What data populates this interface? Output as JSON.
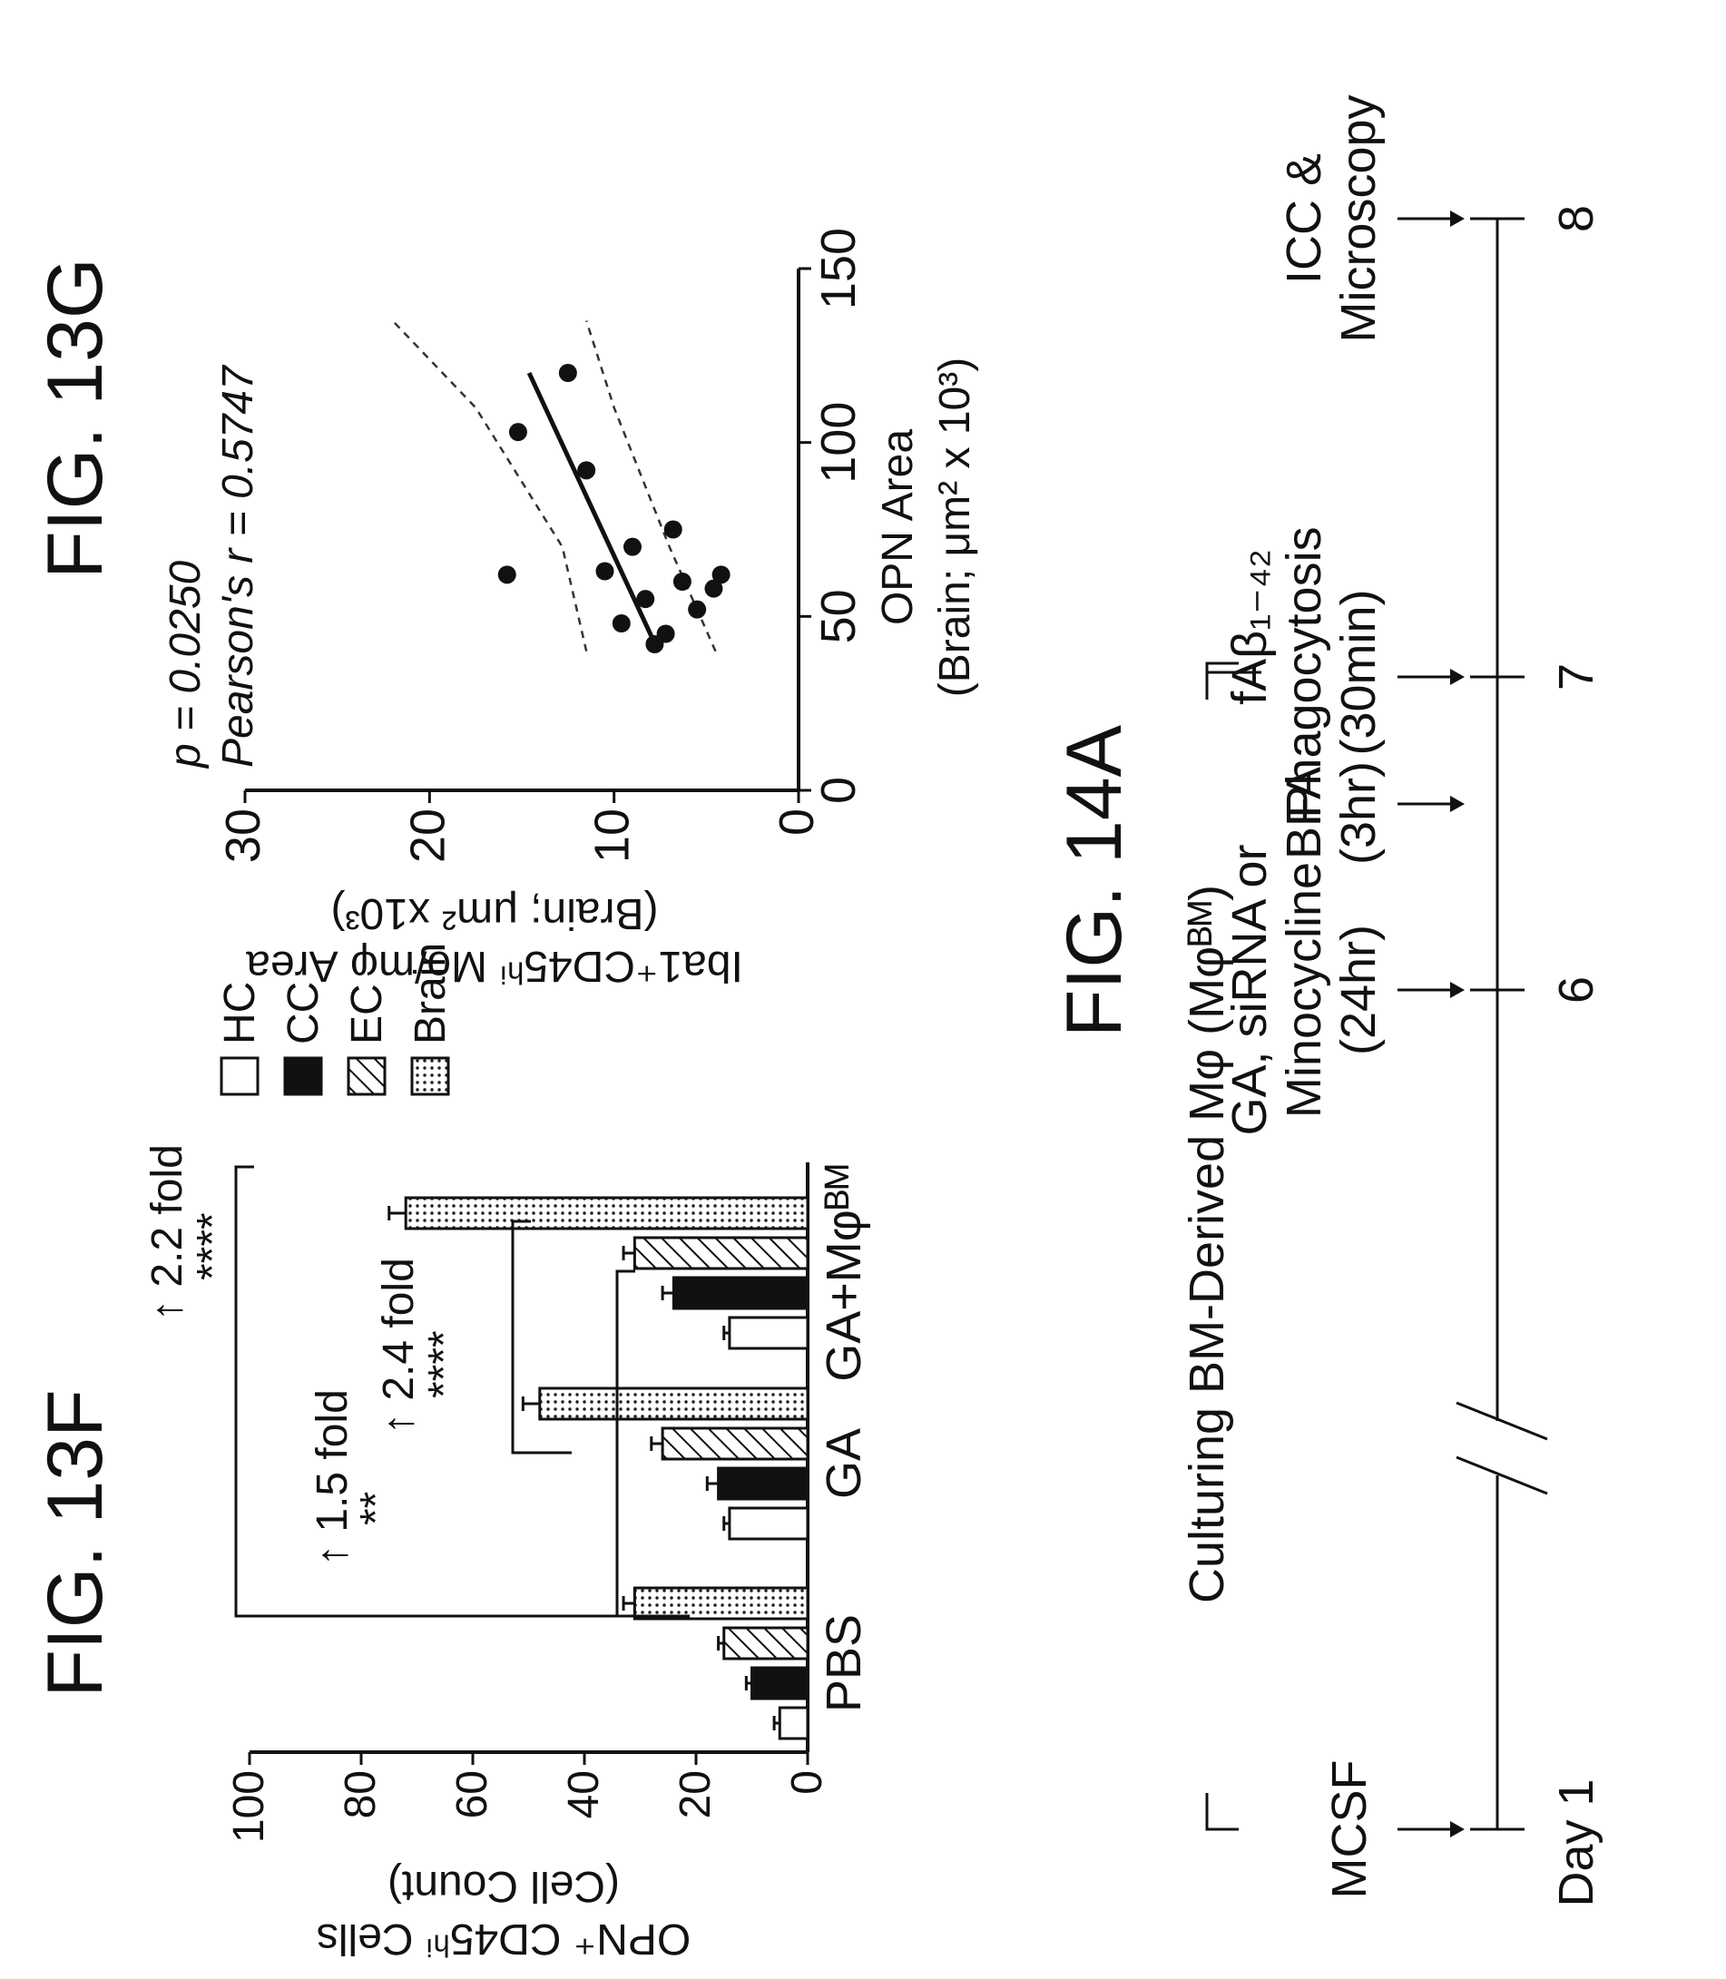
{
  "figures": {
    "fig13f": "FIG. 13F",
    "fig13g": "FIG. 13G",
    "fig14a": "FIG. 14A"
  },
  "chart_data": [
    {
      "type": "bar",
      "figure": "FIG. 13F",
      "ylabel_line1": "OPN⁺ CD45ʰⁱ Cells",
      "ylabel_line2": "(Cell Count)",
      "ylim": [
        0,
        100
      ],
      "yticks": [
        0,
        20,
        40,
        60,
        80,
        100
      ],
      "categories": [
        "PBS",
        "GA",
        "GA+Mφᴮᴹ"
      ],
      "series": [
        {
          "name": "HC",
          "fill": "white",
          "values": [
            5,
            14,
            14
          ]
        },
        {
          "name": "CC",
          "fill": "black",
          "values": [
            10,
            16,
            24
          ]
        },
        {
          "name": "EC",
          "fill": "hatch",
          "values": [
            15,
            26,
            31
          ]
        },
        {
          "name": "Brain",
          "fill": "dotted",
          "values": [
            31,
            48,
            72
          ]
        }
      ],
      "error_bars": {
        "Brain": [
          2,
          3,
          3
        ],
        "CC": [
          1,
          2,
          2
        ],
        "EC": [
          1,
          2,
          2
        ],
        "HC": [
          1,
          1,
          1
        ]
      },
      "annotations": [
        {
          "text": "1.5 fold",
          "stars": "**"
        },
        {
          "text": "2.4 fold",
          "stars": "****"
        },
        {
          "text": "2.2 fold",
          "stars": "****"
        }
      ]
    },
    {
      "type": "scatter",
      "figure": "FIG. 13G",
      "ylabel_line1": "Iba1⁺CD45ʰⁱ Mo/mφ Area",
      "ylabel_line2": "(Brain; μm² x10³)",
      "xlabel_line1": "OPN Area",
      "xlabel_line2": "(Brain; μm² x 10³)",
      "xlim": [
        0,
        150
      ],
      "ylim": [
        0,
        30
      ],
      "xticks": [
        0,
        50,
        100,
        150
      ],
      "yticks": [
        0,
        10,
        20,
        30
      ],
      "stat_p": "p = 0.0250",
      "stat_r": "Pearson's r = 0.5747",
      "points": [
        {
          "x": 42,
          "y": 7.8
        },
        {
          "x": 45,
          "y": 7.2
        },
        {
          "x": 48,
          "y": 9.6
        },
        {
          "x": 52,
          "y": 5.5
        },
        {
          "x": 55,
          "y": 8.3
        },
        {
          "x": 58,
          "y": 4.6
        },
        {
          "x": 62,
          "y": 4.2
        },
        {
          "x": 60,
          "y": 6.3
        },
        {
          "x": 63,
          "y": 10.5
        },
        {
          "x": 70,
          "y": 9.0
        },
        {
          "x": 75,
          "y": 6.8
        },
        {
          "x": 62,
          "y": 15.8
        },
        {
          "x": 92,
          "y": 11.5
        },
        {
          "x": 103,
          "y": 15.2
        },
        {
          "x": 120,
          "y": 12.5
        }
      ],
      "fit": {
        "x": [
          40,
          120
        ],
        "y": [
          7.6,
          14.6
        ]
      },
      "ci_upper": {
        "x": [
          40,
          70,
          110,
          135
        ],
        "y": [
          11.5,
          12.8,
          17.5,
          22.0
        ]
      },
      "ci_lower": {
        "x": [
          40,
          70,
          110,
          135
        ],
        "y": [
          4.5,
          7.0,
          10.0,
          11.5
        ]
      }
    }
  ],
  "timeline": {
    "bracket_culture": "Culturing BM-Derived Mφ (Mφᴮᴹ)",
    "bracket_phago": "fAβ₁₋₄₂",
    "events": [
      {
        "line1": "MCSF",
        "line2": "",
        "line3": ""
      },
      {
        "line1": "GA, siRNA or",
        "line2": "Minocycline",
        "line3": "(24hr)"
      },
      {
        "line1": "BFA",
        "line2": "(3hr)",
        "line3": ""
      },
      {
        "line1": "Phagocytosis",
        "line2": "(30min)",
        "line3": ""
      },
      {
        "line1": "ICC &",
        "line2": "Microscopy",
        "line3": ""
      }
    ],
    "day_labels": [
      "Day 1",
      "6",
      "7",
      "8"
    ]
  }
}
